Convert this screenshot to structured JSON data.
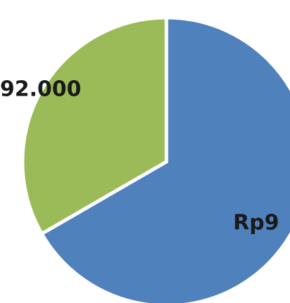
{
  "chart_data": {
    "type": "pie",
    "categories": [
      null,
      null
    ],
    "values": [
      984000,
      492000
    ],
    "value_labels": [
      "Rp9",
      "92.000"
    ],
    "colors": [
      "#4f81bd",
      "#9bbb59"
    ]
  }
}
